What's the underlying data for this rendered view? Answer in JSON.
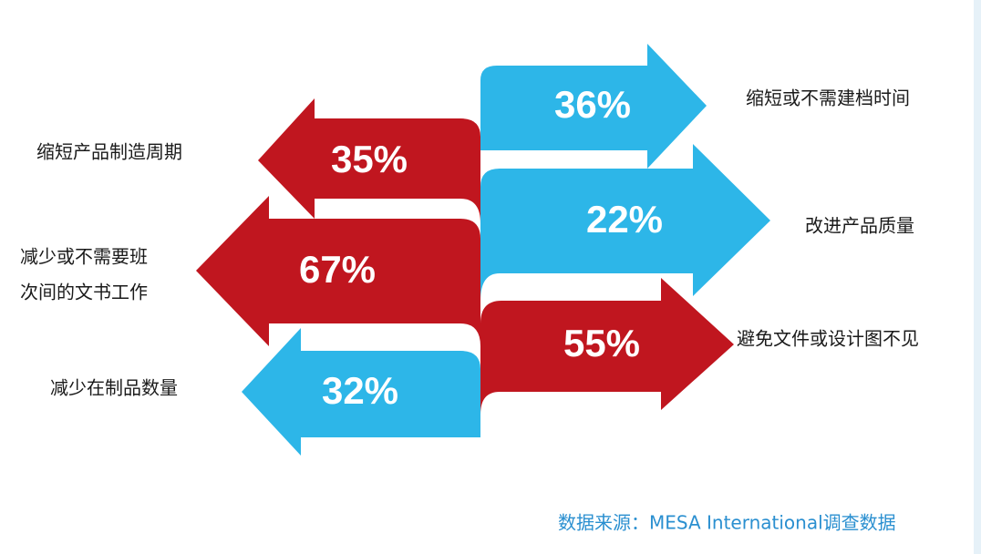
{
  "left_items": [
    {
      "value": "35%",
      "label_lines": [
        "缩短产品制造周期"
      ]
    },
    {
      "value": "67%",
      "label_lines": [
        "减少或不需要班",
        "次间的文书工作"
      ]
    },
    {
      "value": "32%",
      "label_lines": [
        "减少在制品数量"
      ]
    }
  ],
  "right_items": [
    {
      "value": "36%",
      "label_lines": [
        "缩短或不需建档时间"
      ]
    },
    {
      "value": "22%",
      "label_lines": [
        "改进产品质量"
      ]
    },
    {
      "value": "55%",
      "label_lines": [
        "避免文件或设计图不见"
      ]
    }
  ],
  "source": "数据来源：MESA International调查数据"
}
